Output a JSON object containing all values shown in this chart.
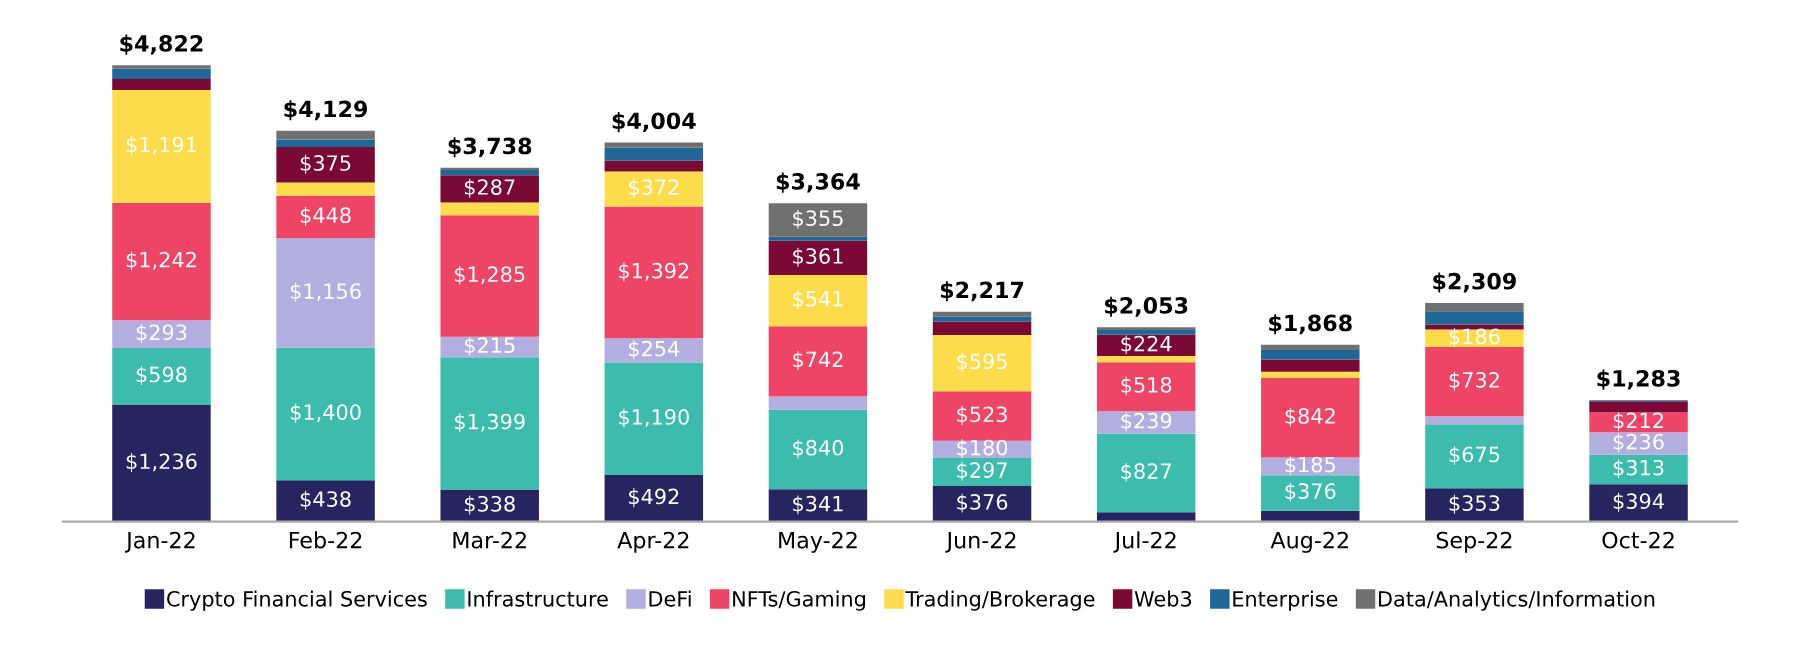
{
  "chart_data": {
    "type": "bar",
    "stacked": true,
    "legend": "bottom",
    "grid": false,
    "categories": [
      "Jan-22",
      "Feb-22",
      "Mar-22",
      "Apr-22",
      "May-22",
      "Jun-22",
      "Jul-22",
      "Aug-22",
      "Sep-22",
      "Oct-22"
    ],
    "series": [
      {
        "name": "Crypto Financial Services",
        "color": "#272560",
        "values": [
          1236,
          438,
          338,
          492,
          341,
          376,
          100,
          115,
          353,
          394
        ],
        "value_labels": [
          "$1,236",
          "$438",
          "$338",
          "$492",
          "$341",
          "$376",
          null,
          null,
          "$353",
          "$394"
        ]
      },
      {
        "name": "Infrastructure",
        "color": "#3dbcae",
        "values": [
          598,
          1400,
          1399,
          1190,
          840,
          297,
          827,
          376,
          675,
          313
        ],
        "value_labels": [
          "$598",
          "$1,400",
          "$1,399",
          "$1,190",
          "$840",
          "$297",
          "$827",
          "$376",
          "$675",
          "$313"
        ]
      },
      {
        "name": "DeFi",
        "color": "#b3aee0",
        "values": [
          293,
          1156,
          215,
          254,
          142,
          180,
          239,
          185,
          84,
          236
        ],
        "value_labels": [
          "$293",
          "$1,156",
          "$215",
          "$254",
          null,
          "$180",
          "$239",
          "$185",
          null,
          "$236"
        ]
      },
      {
        "name": "NFTs/Gaming",
        "color": "#ee4466",
        "values": [
          1242,
          448,
          1285,
          1392,
          742,
          523,
          518,
          842,
          732,
          212
        ],
        "value_labels": [
          "$1,242",
          "$448",
          "$1,285",
          "$1,392",
          "$742",
          "$523",
          "$518",
          "$842",
          "$732",
          "$212"
        ]
      },
      {
        "name": "Trading/Brokerage",
        "color": "#fddc4c",
        "values": [
          1191,
          140,
          135,
          372,
          541,
          595,
          65,
          65,
          186,
          0
        ],
        "value_labels": [
          "$1,191",
          null,
          null,
          "$372",
          "$541",
          "$595",
          null,
          null,
          "$186",
          null
        ]
      },
      {
        "name": "Web3",
        "color": "#7a0a35",
        "values": [
          115,
          375,
          287,
          115,
          361,
          142,
          224,
          130,
          52,
          116
        ],
        "value_labels": [
          null,
          "$375",
          "$287",
          null,
          "$361",
          null,
          "$224",
          null,
          null,
          null
        ]
      },
      {
        "name": "Enterprise",
        "color": "#1f6796",
        "values": [
          110,
          80,
          55,
          135,
          42,
          52,
          50,
          100,
          140,
          12
        ],
        "value_labels": [
          null,
          null,
          null,
          null,
          null,
          null,
          null,
          null,
          null,
          null
        ]
      },
      {
        "name": "Data/Analytics/Information",
        "color": "#707070",
        "values": [
          37,
          92,
          24,
          54,
          355,
          52,
          30,
          55,
          87,
          0
        ],
        "value_labels": [
          null,
          null,
          null,
          null,
          "$355",
          null,
          null,
          null,
          null,
          null
        ]
      }
    ],
    "totals": [
      "$4,822",
      "$4,129",
      "$3,738",
      "$4,004",
      "$3,364",
      "$2,217",
      "$2,053",
      "$1,868",
      "$2,309",
      "$1,283"
    ]
  }
}
